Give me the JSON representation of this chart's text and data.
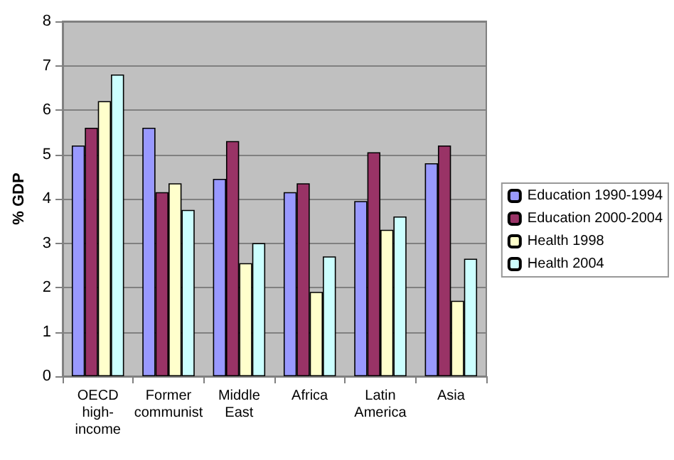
{
  "chart_data": {
    "type": "bar",
    "ylabel": "% GDP",
    "categories": [
      "OECD high-income",
      "Former communist",
      "Middle East",
      "Africa",
      "Latin America",
      "Asia"
    ],
    "series": [
      {
        "name": "Education 1990-1994",
        "color": "#9999ff",
        "values": [
          5.2,
          5.6,
          4.45,
          4.15,
          3.95,
          4.8
        ]
      },
      {
        "name": "Education 2000-2004",
        "color": "#993366",
        "values": [
          5.6,
          4.15,
          5.3,
          4.35,
          5.05,
          5.2
        ]
      },
      {
        "name": "Health 1998",
        "color": "#ffffcc",
        "values": [
          6.2,
          4.35,
          2.55,
          1.9,
          3.3,
          1.7
        ]
      },
      {
        "name": "Health 2004",
        "color": "#ccffff",
        "values": [
          6.8,
          3.75,
          3.0,
          2.7,
          3.6,
          2.65
        ]
      }
    ],
    "ylim": [
      0,
      8
    ],
    "yticks": [
      0,
      1,
      2,
      3,
      4,
      5,
      6,
      7,
      8
    ],
    "grid": "y",
    "legend": "right"
  }
}
